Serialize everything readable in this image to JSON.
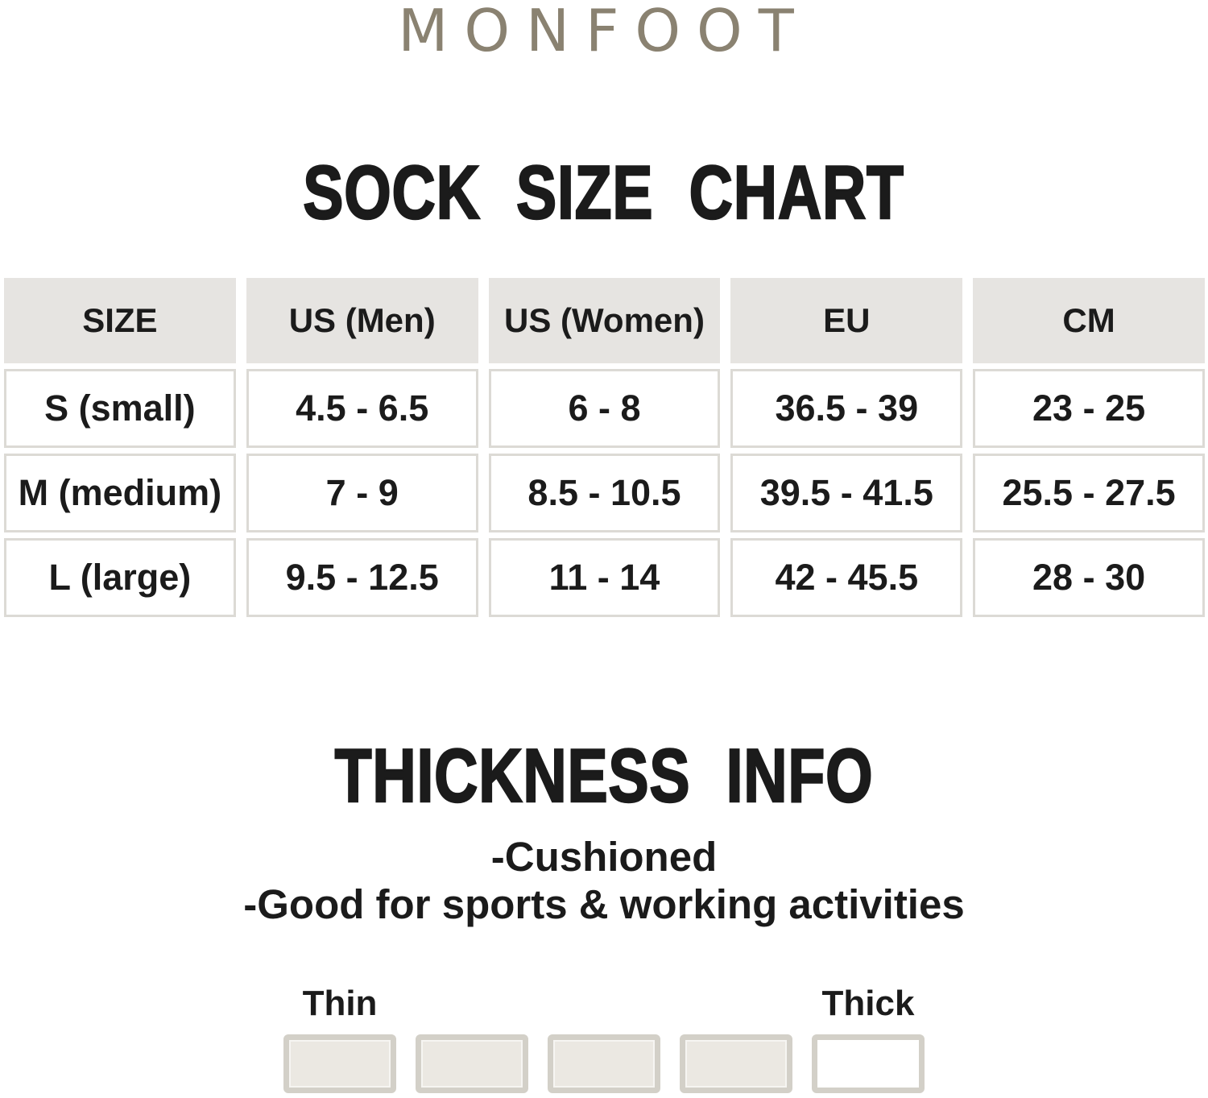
{
  "brand": "MONFOOT",
  "size_chart": {
    "title": "SOCK SIZE CHART",
    "columns": [
      "SIZE",
      "US (Men)",
      "US (Women)",
      "EU",
      "CM"
    ],
    "rows": [
      [
        "S (small)",
        "4.5 - 6.5",
        "6 - 8",
        "36.5 - 39",
        "23 - 25"
      ],
      [
        "M (medium)",
        "7 - 9",
        "8.5 - 10.5",
        "39.5 - 41.5",
        "25.5 - 27.5"
      ],
      [
        "L (large)",
        "9.5 - 12.5",
        "11 - 14",
        "42 - 45.5",
        "28 - 30"
      ]
    ]
  },
  "thickness": {
    "title": "THICKNESS INFO",
    "notes": [
      "-Cushioned",
      "-Good for sports & working activities"
    ],
    "scale_min_label": "Thin",
    "scale_max_label": "Thick",
    "levels_total": 5,
    "levels_filled": 4
  },
  "colors": {
    "brand_text": "#8a8271",
    "heading_text": "#1b1b1b",
    "table_header_bg": "#e6e4e1",
    "table_cell_border": "#dcdad5",
    "scale_box_fill": "#ebe8e2",
    "scale_box_border": "#d3d0c8",
    "scale_box_empty_fill": "#ffffff"
  }
}
